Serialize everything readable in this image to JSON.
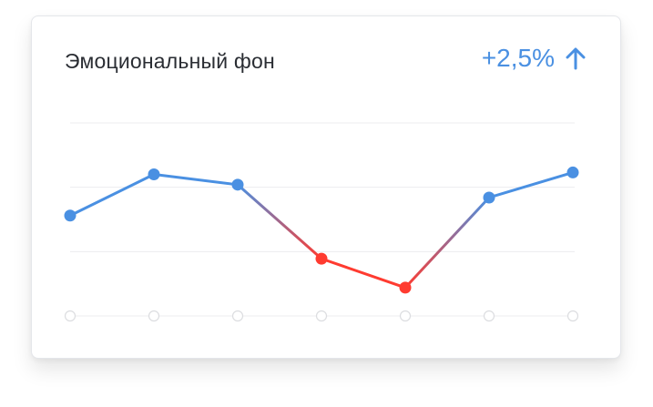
{
  "widget": {
    "title": "Эмоциональный фон",
    "change_value": "+2,5%",
    "change_direction": "up",
    "trend_icon": "arrow-up-icon"
  },
  "colors": {
    "positive": "#4a90e2",
    "negative": "#ff3b30",
    "grid": "#ececef",
    "baseline_marker": "#dcdde0"
  },
  "chart_data": {
    "type": "line",
    "title": "",
    "xlabel": "",
    "ylabel": "",
    "x": [
      1,
      2,
      3,
      4,
      5,
      6,
      7
    ],
    "ylim": [
      0,
      3
    ],
    "grid": true,
    "series": [
      {
        "values": [
          1.56,
          2.2,
          2.04,
          0.89,
          0.44,
          1.84,
          2.23
        ],
        "point_states": [
          "positive",
          "positive",
          "positive",
          "negative",
          "negative",
          "positive",
          "positive"
        ]
      }
    ]
  }
}
